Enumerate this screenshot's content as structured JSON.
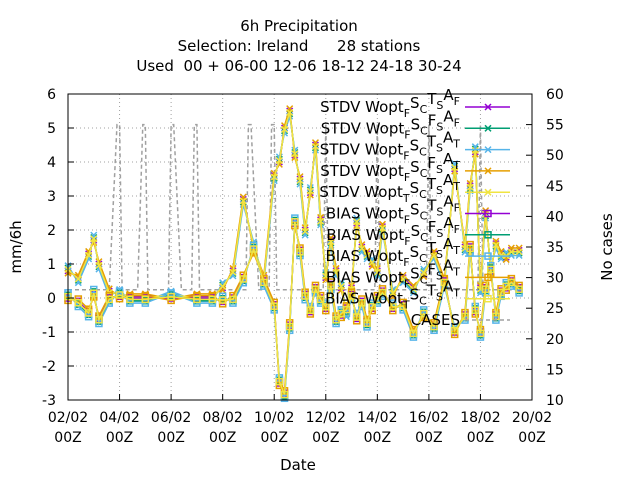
{
  "chart_data": {
    "type": "line",
    "title": [
      "6h Precipitation",
      "Selection: Ireland      28 stations",
      "Used  00 + 06-00 12-06 18-12 24-18 30-24"
    ],
    "xlabel": "Date",
    "ylabel": "mm/6h",
    "y2label": "No cases",
    "ylim": [
      -3,
      6
    ],
    "y2lim": [
      10,
      60
    ],
    "yticks": [
      "-3",
      "-2",
      "-1",
      "0",
      "1",
      "2",
      "3",
      "4",
      "5",
      "6"
    ],
    "y2ticks": [
      "10",
      "15",
      "20",
      "25",
      "30",
      "35",
      "40",
      "45",
      "50",
      "55",
      "60"
    ],
    "xlim": [
      0,
      18
    ],
    "xticks": [
      {
        "top": "02/02",
        "bottom": "00Z"
      },
      {
        "top": "04/02",
        "bottom": "00Z"
      },
      {
        "top": "06/02",
        "bottom": "00Z"
      },
      {
        "top": "08/02",
        "bottom": "00Z"
      },
      {
        "top": "10/02",
        "bottom": "00Z"
      },
      {
        "top": "12/02",
        "bottom": "00Z"
      },
      {
        "top": "14/02",
        "bottom": "00Z"
      },
      {
        "top": "16/02",
        "bottom": "00Z"
      },
      {
        "top": "18/02",
        "bottom": "00Z"
      },
      {
        "top": "20/02",
        "bottom": "00Z"
      }
    ],
    "grid": true,
    "legend_position": "top-right",
    "legend": [
      {
        "pre": "STDV Wopt",
        "sub1": "F",
        "mid1": "S",
        "sub2": "C",
        "mid2": "T",
        "sub3": "S",
        "mid3": "A",
        "sub4": "F",
        "color": "#9400d3",
        "marker": "x"
      },
      {
        "pre": "STDV Wopt",
        "sub1": "F",
        "mid1": "S",
        "sub2": "C",
        "mid2": "F",
        "sub3": "S",
        "mid3": "A",
        "sub4": "F",
        "color": "#009e73",
        "marker": "x"
      },
      {
        "pre": "STDV Wopt",
        "sub1": "F",
        "mid1": "S",
        "sub2": "C",
        "mid2": "T",
        "sub3": "S",
        "mid3": "A",
        "sub4": "T",
        "color": "#56b4e9",
        "marker": "x"
      },
      {
        "pre": "STDV Wopt",
        "sub1": "F",
        "mid1": "S",
        "sub2": "C",
        "mid2": "F",
        "sub3": "S",
        "mid3": "A",
        "sub4": "T",
        "color": "#e69f00",
        "marker": "x"
      },
      {
        "pre": "STDV Wopt",
        "sub1": "T",
        "mid1": "S",
        "sub2": "C",
        "mid2": "T",
        "sub3": "S",
        "mid3": "A",
        "sub4": "T",
        "color": "#f0e442",
        "marker": "x"
      },
      {
        "pre": "BIAS Wopt",
        "sub1": "F",
        "mid1": "S",
        "sub2": "C",
        "mid2": "T",
        "sub3": "S",
        "mid3": "A",
        "sub4": "F",
        "color": "#9400d3",
        "marker": "square"
      },
      {
        "pre": "BIAS Wopt",
        "sub1": "F",
        "mid1": "S",
        "sub2": "C",
        "mid2": "F",
        "sub3": "S",
        "mid3": "A",
        "sub4": "F",
        "color": "#009e73",
        "marker": "square"
      },
      {
        "pre": "BIAS Wopt",
        "sub1": "F",
        "mid1": "S",
        "sub2": "C",
        "mid2": "T",
        "sub3": "S",
        "mid3": "A",
        "sub4": "T",
        "color": "#56b4e9",
        "marker": "square"
      },
      {
        "pre": "BIAS Wopt",
        "sub1": "F",
        "mid1": "S",
        "sub2": "C",
        "mid2": "F",
        "sub3": "S",
        "mid3": "A",
        "sub4": "T",
        "color": "#e69f00",
        "marker": "square"
      },
      {
        "pre": "BIAS Wopt",
        "sub1": "T",
        "mid1": "S",
        "sub2": "C",
        "mid2": "T",
        "sub3": "S",
        "mid3": "A",
        "sub4": "T",
        "color": "#f0e442",
        "marker": "square"
      },
      {
        "pre": "CASES",
        "color": "#a0a0a0",
        "marker": "none"
      }
    ],
    "base_stdv": {
      "x": [
        0.0,
        0.4,
        0.8,
        1.0,
        1.2,
        1.6,
        2.0,
        2.4,
        3.0,
        4.0,
        5.0,
        5.6,
        6.0,
        6.4,
        6.8,
        7.2,
        7.6,
        8.0,
        8.2,
        8.4,
        8.6,
        8.8,
        9.0,
        9.2,
        9.4,
        9.6,
        9.8,
        10.0,
        10.2,
        10.4,
        10.6,
        10.8,
        11.0,
        11.2,
        11.4,
        11.6,
        11.8,
        12.0,
        12.2,
        12.6,
        13.0,
        13.4,
        13.8,
        14.2,
        14.6,
        15.0,
        15.4,
        15.6,
        15.8,
        16.0,
        16.2,
        16.4,
        16.6,
        16.8,
        17.0,
        17.2,
        17.5
      ],
      "y": [
        0.8,
        0.6,
        1.3,
        1.7,
        1.0,
        0.2,
        0.1,
        0.05,
        0.05,
        0.05,
        0.05,
        0.05,
        0.3,
        0.8,
        2.9,
        1.5,
        0.6,
        3.6,
        4.0,
        5.0,
        5.5,
        4.2,
        3.5,
        2.0,
        3.1,
        4.5,
        2.3,
        0.6,
        1.7,
        0.8,
        0.3,
        -0.4,
        0.3,
        2.2,
        1.5,
        1.3,
        1.0,
        0.8,
        2.1,
        0.1,
        0.6,
        0.3,
        0.7,
        1.3,
        0.5,
        3.8,
        1.5,
        3.3,
        4.3,
        0.3,
        2.5,
        0.8,
        1.6,
        1.3,
        1.2,
        1.4,
        1.4
      ]
    },
    "base_bias": {
      "x": [
        0.0,
        0.4,
        0.8,
        1.0,
        1.2,
        1.6,
        2.0,
        2.4,
        3.0,
        4.0,
        5.0,
        5.6,
        6.0,
        6.4,
        6.8,
        7.2,
        7.6,
        8.0,
        8.2,
        8.4,
        8.6,
        8.8,
        9.0,
        9.2,
        9.4,
        9.6,
        9.8,
        10.0,
        10.2,
        10.4,
        10.6,
        10.8,
        11.0,
        11.2,
        11.4,
        11.6,
        11.8,
        12.0,
        12.2,
        12.6,
        13.0,
        13.4,
        13.8,
        14.2,
        14.6,
        15.0,
        15.4,
        15.6,
        15.8,
        16.0,
        16.2,
        16.4,
        16.6,
        16.8,
        17.0,
        17.2,
        17.5
      ],
      "y": [
        0.0,
        -0.1,
        -0.4,
        0.1,
        -0.6,
        0.0,
        0.05,
        0.0,
        0.0,
        0.0,
        0.0,
        0.0,
        -0.1,
        0.0,
        0.6,
        1.4,
        0.5,
        -0.2,
        -2.5,
        -2.8,
        -0.8,
        2.2,
        1.4,
        0.1,
        -0.4,
        0.3,
        0.0,
        -0.3,
        0.4,
        -0.6,
        -0.5,
        -0.3,
        0.1,
        -0.6,
        -0.1,
        -0.7,
        -0.3,
        0.0,
        0.2,
        -0.3,
        -0.2,
        -1.0,
        -0.5,
        -0.8,
        0.5,
        -1.0,
        -0.5,
        1.5,
        -0.4,
        -1.0,
        0.3,
        0.8,
        -0.5,
        0.2,
        0.3,
        0.5,
        0.3
      ]
    },
    "series_offsets": [
      0.0,
      0.08,
      0.15,
      -0.07,
      0.04
    ],
    "cases": {
      "x": [
        0,
        0.4,
        0.6,
        0.8,
        1.6,
        1.9,
        2.0,
        2.1,
        2.3,
        2.7,
        2.9,
        3.0,
        3.1,
        3.4,
        3.9,
        4.0,
        4.1,
        4.4,
        4.8,
        4.9,
        5.0,
        5.1,
        5.4,
        6.9,
        7.0,
        7.1,
        7.4,
        7.8,
        7.9,
        8.0,
        8.1,
        8.4,
        9.9,
        10.0,
        10.1,
        10.4,
        11.9,
        12.0,
        12.1,
        12.4,
        13.9,
        14.0,
        14.1,
        14.4,
        15.9,
        16.0,
        16.1,
        16.4,
        17.0,
        17.5
      ],
      "y": [
        28,
        28,
        28,
        28,
        28,
        55,
        55,
        28,
        28,
        28,
        55,
        55,
        28,
        28,
        28,
        55,
        55,
        28,
        28,
        55,
        55,
        28,
        28,
        28,
        55,
        55,
        28,
        28,
        55,
        55,
        28,
        28,
        28,
        55,
        28,
        28,
        28,
        55,
        28,
        28,
        28,
        55,
        28,
        28,
        28,
        55,
        28,
        28,
        28,
        28
      ]
    }
  }
}
